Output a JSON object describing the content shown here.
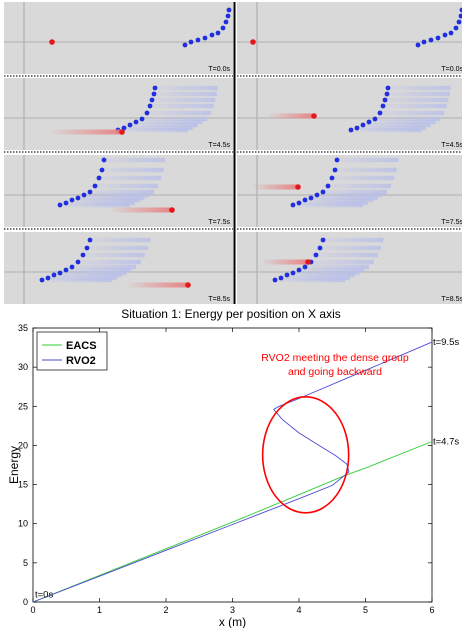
{
  "simulation": {
    "panels": [
      {
        "time_label": "T=0.0s"
      },
      {
        "time_label": "T=4.5s"
      },
      {
        "time_label": "T=7.5s"
      },
      {
        "time_label": "T=8.5s"
      }
    ],
    "colors": {
      "background": "#d9d9d9",
      "agent": "#1f2fe0",
      "subject": "#e41818",
      "trail_agent": "#b8bfe9",
      "trail_subject": "#e88080"
    }
  },
  "chart_data": {
    "type": "line",
    "title": "Situation 1: Energy per position on X axis",
    "xlabel": "x (m)",
    "ylabel": "Energy",
    "xlim": [
      0,
      6
    ],
    "ylim": [
      0,
      35
    ],
    "xticks": [
      "0",
      "1",
      "2",
      "3",
      "4",
      "5",
      "6"
    ],
    "yticks": [
      "0",
      "5",
      "10",
      "15",
      "20",
      "25",
      "30",
      "35"
    ],
    "grid": false,
    "legend": "top-left",
    "series": [
      {
        "name": "EACS",
        "color": "#33cc33",
        "x": [
          0,
          1,
          2,
          3,
          4,
          4.7,
          5,
          6
        ],
        "y": [
          0,
          3.4,
          6.8,
          10.2,
          13.7,
          16.2,
          17.1,
          20.5
        ]
      },
      {
        "name": "RVO2",
        "color": "#4a4ad6",
        "x": [
          0,
          1,
          2,
          3,
          4,
          4.5,
          4.75,
          4.72,
          4.55,
          4.3,
          4.0,
          3.75,
          3.62,
          3.7,
          4.0,
          5.0,
          6.0
        ],
        "y": [
          0,
          3.3,
          6.6,
          9.9,
          13.2,
          14.9,
          16.6,
          17.6,
          18.7,
          20.0,
          21.6,
          23.3,
          24.6,
          25.0,
          26.0,
          29.6,
          33.2
        ]
      }
    ],
    "annotations": [
      {
        "text": "RVO2 meeting the dense group",
        "color": "#ff0000"
      },
      {
        "text": "and going backward",
        "color": "#ff0000"
      },
      {
        "text": "t=9.5s"
      },
      {
        "text": "t=4.7s"
      },
      {
        "text": "t=0s"
      }
    ]
  }
}
